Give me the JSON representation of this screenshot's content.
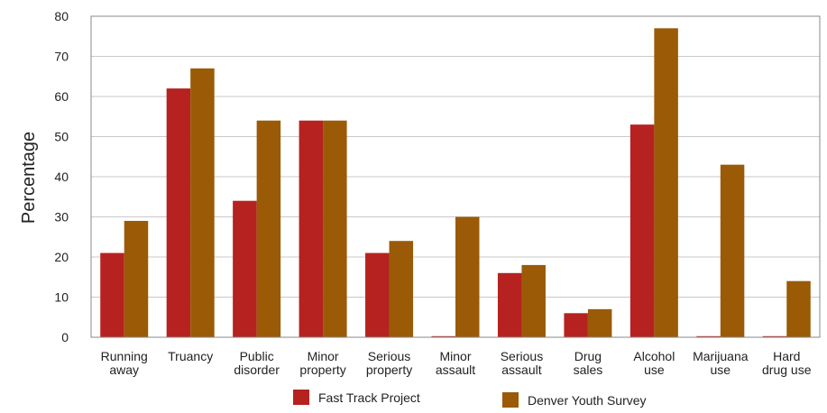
{
  "chart_data": {
    "type": "bar",
    "ylabel": "Percentage",
    "xlabel": "",
    "ylim": [
      0,
      80
    ],
    "yticks": [
      0,
      10,
      20,
      30,
      40,
      50,
      60,
      70,
      80
    ],
    "grid": true,
    "legend_position": "bottom",
    "categories": [
      [
        "Running",
        "away"
      ],
      [
        "Truancy"
      ],
      [
        "Public",
        "disorder"
      ],
      [
        "Minor",
        "property"
      ],
      [
        "Serious",
        "property"
      ],
      [
        "Minor",
        "assault"
      ],
      [
        "Serious",
        "assault"
      ],
      [
        "Drug",
        "sales"
      ],
      [
        "Alcohol",
        "use"
      ],
      [
        "Marijuana",
        "use"
      ],
      [
        "Hard",
        "drug use"
      ]
    ],
    "series": [
      {
        "name": "Fast Track Project",
        "color": "#b5221f",
        "values": [
          21,
          62,
          34,
          54,
          21,
          0,
          16,
          6,
          53,
          0,
          0
        ]
      },
      {
        "name": "Denver Youth Survey",
        "color": "#9a5a06",
        "values": [
          29,
          67,
          54,
          54,
          24,
          30,
          18,
          7,
          77,
          43,
          14
        ]
      }
    ]
  }
}
